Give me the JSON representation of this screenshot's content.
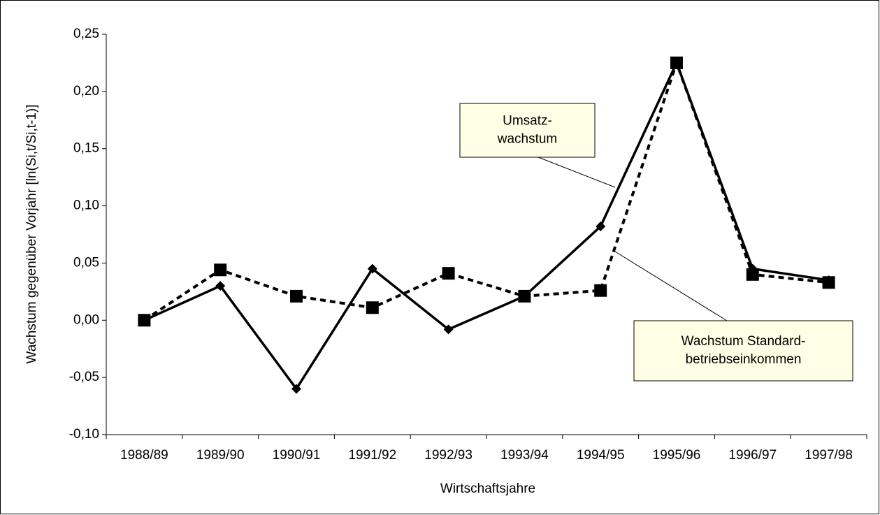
{
  "chart_data": {
    "type": "line",
    "x_label": "Wirtschaftsjahre",
    "y_label": "Wachstum gegenüber Vorjahr [ln(Si,t/Si,t-1)]",
    "categories": [
      "1988/89",
      "1989/90",
      "1990/91",
      "1991/92",
      "1992/93",
      "1993/94",
      "1994/95",
      "1995/96",
      "1996/97",
      "1997/98"
    ],
    "series": [
      {
        "color": "#000000",
        "values": [
          0,
          0.03,
          -0.06,
          0.045,
          -0.008,
          0.021,
          0.082,
          0.225,
          0.045,
          0.035
        ]
      },
      {
        "color": "#000000",
        "values": [
          0,
          0.044,
          0.021,
          0.011,
          0.041,
          0.021,
          0.026,
          0.225,
          0.04,
          0.033
        ]
      }
    ],
    "ylim": [
      -0.1,
      0.25
    ],
    "yticks": [
      {
        "value": -0.1,
        "label": "-0,10"
      },
      {
        "value": -0.05,
        "label": "-0,05"
      },
      {
        "value": 0,
        "label": "0,00"
      },
      {
        "value": 0.05,
        "label": "0,05"
      },
      {
        "value": 0.1,
        "label": "0,10"
      },
      {
        "value": 0.15,
        "label": "0,15"
      },
      {
        "value": 0.2,
        "label": "0,20"
      },
      {
        "value": 0.25,
        "label": "0,25"
      }
    ],
    "annotations": [
      {
        "lines": [
          "Umsatz-",
          "wachstum"
        ]
      },
      {
        "lines": [
          "Wachstum Standard-",
          "betriebseinkommen"
        ]
      }
    ]
  }
}
